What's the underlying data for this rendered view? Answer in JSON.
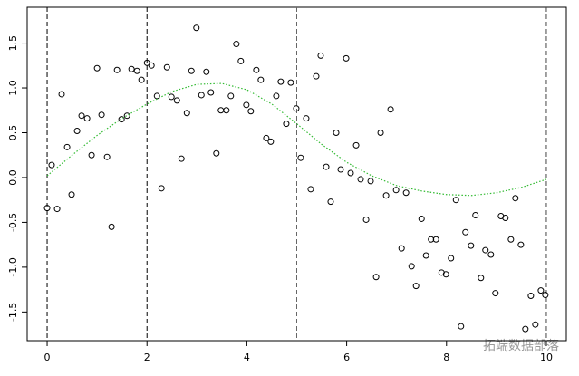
{
  "chart_data": {
    "type": "scatter",
    "xlim": [
      -0.4,
      10.4
    ],
    "ylim": [
      -1.82,
      1.9
    ],
    "xticks": [
      0,
      2,
      4,
      6,
      8,
      10
    ],
    "yticks": [
      -1.5,
      {
        "value": -1.0,
        "label": "-1.0"
      },
      -0.5,
      {
        "value": 0.0,
        "label": "0.0"
      },
      0.5,
      {
        "value": 1.0,
        "label": "1.0"
      },
      1.5
    ],
    "vlines": [
      0,
      2,
      5,
      10
    ],
    "vline_colors": [
      "#000000",
      "#000000",
      "#666666",
      "#444444"
    ],
    "series": [
      {
        "type": "scatter",
        "color": "#000000",
        "x": [
          0.0,
          0.09,
          0.2,
          0.29,
          0.4,
          0.49,
          0.6,
          0.69,
          0.8,
          0.89,
          1.0,
          1.09,
          1.2,
          1.29,
          1.4,
          1.49,
          1.6,
          1.69,
          1.8,
          1.89,
          2.0,
          2.09,
          2.2,
          2.29,
          2.4,
          2.49,
          2.6,
          2.69,
          2.8,
          2.89,
          2.99,
          3.09,
          3.19,
          3.28,
          3.39,
          3.48,
          3.59,
          3.68,
          3.79,
          3.88,
          3.99,
          4.08,
          4.19,
          4.28,
          4.39,
          4.48,
          4.59,
          4.68,
          4.79,
          4.88,
          4.99,
          5.08,
          5.19,
          5.28,
          5.39,
          5.48,
          5.59,
          5.68,
          5.79,
          5.88,
          5.99,
          6.08,
          6.19,
          6.28,
          6.39,
          6.48,
          6.59,
          6.68,
          6.79,
          6.88,
          6.99,
          7.1,
          7.19,
          7.3,
          7.39,
          7.5,
          7.59,
          7.69,
          7.79,
          7.9,
          7.99,
          8.09,
          8.19,
          8.29,
          8.38,
          8.49,
          8.58,
          8.69,
          8.78,
          8.89,
          8.98,
          9.09,
          9.18,
          9.29,
          9.38,
          9.49,
          9.58,
          9.69,
          9.78,
          9.89,
          9.98
        ],
        "values": [
          -0.34,
          0.14,
          -0.35,
          0.93,
          0.34,
          -0.19,
          0.52,
          0.69,
          0.66,
          0.25,
          1.22,
          0.7,
          0.23,
          -0.55,
          1.2,
          0.65,
          0.69,
          1.21,
          1.19,
          1.09,
          1.28,
          1.25,
          0.91,
          -0.12,
          1.23,
          0.9,
          0.86,
          0.21,
          0.72,
          1.19,
          1.67,
          0.92,
          1.18,
          0.95,
          0.27,
          0.75,
          0.75,
          0.91,
          1.49,
          1.3,
          0.81,
          0.74,
          1.2,
          1.09,
          0.44,
          0.4,
          0.91,
          1.07,
          0.6,
          1.06,
          0.77,
          0.22,
          0.66,
          -0.13,
          1.13,
          1.36,
          0.12,
          -0.27,
          0.5,
          0.09,
          1.33,
          0.05,
          0.36,
          -0.02,
          -0.47,
          -0.04,
          -1.11,
          0.5,
          -0.2,
          0.76,
          -0.14,
          -0.79,
          -0.17,
          -0.99,
          -1.21,
          -0.46,
          -0.87,
          -0.69,
          -0.69,
          -1.06,
          -1.08,
          -0.9,
          -0.25,
          -1.66,
          -0.61,
          -0.76,
          -0.42,
          -1.12,
          -0.81,
          -0.86,
          -1.29,
          -0.43,
          -0.45,
          -0.69,
          -0.23,
          -0.75,
          -1.69,
          -1.32,
          -1.64,
          -1.26,
          -1.31
        ]
      },
      {
        "type": "line",
        "color": "#33bb33",
        "x": [
          0,
          0.5,
          1,
          1.5,
          2,
          2.5,
          3,
          3.5,
          4,
          4.5,
          5,
          5.5,
          6,
          6.5,
          7,
          7.5,
          8,
          8.5,
          9,
          9.5,
          10
        ],
        "values": [
          0.02,
          0.25,
          0.47,
          0.66,
          0.82,
          0.96,
          1.04,
          1.05,
          0.98,
          0.82,
          0.6,
          0.37,
          0.17,
          0.02,
          -0.09,
          -0.15,
          -0.19,
          -0.2,
          -0.17,
          -0.11,
          -0.02
        ]
      }
    ],
    "watermark": "拓端数据部落"
  }
}
